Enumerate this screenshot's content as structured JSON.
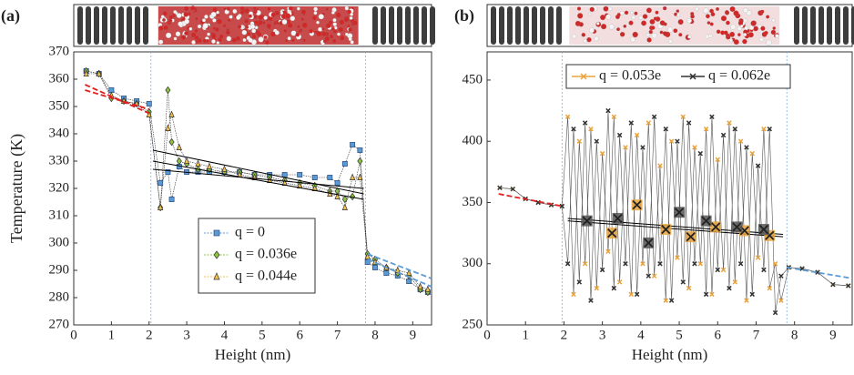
{
  "chart_data": [
    {
      "type": "line",
      "panel_label": "(a)",
      "xlabel": "Height (nm)",
      "ylabel": "Temperature (K)",
      "xlim": [
        0,
        9.5
      ],
      "ylim": [
        270,
        370
      ],
      "xticks": [
        0,
        1,
        2,
        3,
        4,
        5,
        6,
        7,
        8,
        9
      ],
      "yticks": [
        270,
        280,
        290,
        300,
        310,
        320,
        330,
        340,
        350,
        360,
        370
      ],
      "legend": "lower-center",
      "x": [
        0.33,
        0.67,
        1.0,
        1.33,
        1.67,
        2.0,
        2.3,
        2.5,
        2.6,
        2.8,
        3.0,
        3.3,
        3.6,
        4.0,
        4.4,
        4.8,
        5.2,
        5.6,
        6.0,
        6.4,
        6.8,
        7.0,
        7.2,
        7.4,
        7.6,
        7.8,
        8.0,
        8.3,
        8.6,
        8.9,
        9.2,
        9.4
      ],
      "series": [
        {
          "name": "q = 0",
          "color": "#5b9bd5",
          "marker": "square",
          "values": [
            363,
            362,
            356,
            353,
            352,
            351,
            322,
            326,
            316,
            328,
            326,
            326,
            326,
            326,
            326,
            325,
            325,
            325,
            325,
            324,
            324,
            322,
            329,
            336,
            334,
            293,
            291,
            289,
            288,
            286,
            283,
            282
          ]
        },
        {
          "name": "q = 0.036e",
          "color": "#8cc63f",
          "marker": "diamond",
          "values": [
            363,
            362,
            353,
            352,
            351,
            348,
            313,
            356,
            337,
            330,
            329,
            327,
            327,
            326,
            326,
            325,
            324,
            323,
            322,
            321,
            319,
            319,
            316,
            317,
            330,
            296,
            294,
            291,
            289,
            288,
            283,
            282
          ]
        },
        {
          "name": "q = 0.044e",
          "color": "#f2c14e",
          "marker": "triangle",
          "values": [
            362,
            362,
            354,
            352,
            351,
            347,
            313,
            342,
            347,
            335,
            330,
            329,
            328,
            327,
            325,
            324,
            323,
            322,
            321,
            320,
            318,
            317,
            313,
            324,
            324,
            295,
            293,
            291,
            290,
            289,
            284,
            283
          ]
        }
      ],
      "fit_lines": [
        {
          "x": [
            0.3,
            2.0
          ],
          "y": [
            358,
            347.5
          ],
          "color": "#e02020",
          "dash": true
        },
        {
          "x": [
            0.3,
            2.0
          ],
          "y": [
            356,
            349
          ],
          "color": "#e02020",
          "dash": true
        },
        {
          "x": [
            2.1,
            7.7
          ],
          "y": [
            334,
            318
          ],
          "color": "#000000",
          "dash": false
        },
        {
          "x": [
            2.1,
            7.7
          ],
          "y": [
            330,
            316
          ],
          "color": "#000000",
          "dash": false
        },
        {
          "x": [
            2.1,
            7.7
          ],
          "y": [
            327,
            320
          ],
          "color": "#000000",
          "dash": false
        },
        {
          "x": [
            7.8,
            9.5
          ],
          "y": [
            296,
            287
          ],
          "color": "#5b9bd5",
          "dash": true
        },
        {
          "x": [
            7.8,
            9.5
          ],
          "y": [
            294,
            284
          ],
          "color": "#5b9bd5",
          "dash": true
        }
      ],
      "vlines": [
        2.05,
        7.75
      ]
    },
    {
      "type": "line",
      "panel_label": "(b)",
      "xlabel": "Height (nm)",
      "xlim": [
        0,
        9.5
      ],
      "ylim": [
        250,
        473
      ],
      "xticks": [
        0,
        1,
        2,
        3,
        4,
        5,
        6,
        7,
        8,
        9
      ],
      "yticks": [
        250,
        300,
        350,
        400,
        450
      ],
      "legend": "upper-center",
      "x": [
        0.33,
        0.67,
        1.0,
        1.33,
        1.67,
        1.95,
        2.1,
        2.25,
        2.4,
        2.55,
        2.7,
        2.85,
        3.0,
        3.15,
        3.3,
        3.45,
        3.6,
        3.75,
        3.9,
        4.05,
        4.2,
        4.35,
        4.5,
        4.65,
        4.8,
        4.95,
        5.1,
        5.25,
        5.4,
        5.55,
        5.7,
        5.85,
        6.0,
        6.15,
        6.3,
        6.45,
        6.6,
        6.75,
        6.9,
        7.05,
        7.2,
        7.35,
        7.5,
        7.65,
        7.85,
        8.2,
        8.6,
        9.0,
        9.4
      ],
      "series": [
        {
          "name": "q = 0.053e",
          "color": "#e8a33c",
          "marker": "x",
          "values": [
            362,
            361,
            353,
            350,
            348,
            347,
            420,
            275,
            400,
            300,
            410,
            280,
            390,
            310,
            420,
            285,
            395,
            275,
            405,
            300,
            415,
            290,
            380,
            270,
            400,
            305,
            420,
            280,
            395,
            300,
            410,
            275,
            385,
            295,
            415,
            285,
            400,
            270,
            390,
            305,
            410,
            280,
            300,
            270,
            297,
            296,
            293,
            283,
            282
          ]
        },
        {
          "name": "q = 0.062e",
          "color": "#333333",
          "marker": "x",
          "values": [
            362,
            361,
            353,
            350,
            348,
            347,
            300,
            410,
            285,
            415,
            270,
            400,
            295,
            425,
            280,
            405,
            300,
            415,
            275,
            395,
            290,
            420,
            300,
            410,
            270,
            400,
            285,
            415,
            300,
            390,
            275,
            420,
            295,
            405,
            280,
            410,
            300,
            395,
            275,
            380,
            295,
            410,
            260,
            290,
            297,
            296,
            293,
            283,
            282
          ]
        }
      ],
      "block_averages": [
        {
          "color": "#e8a33c",
          "x": [
            3.25,
            3.9,
            4.65,
            5.3,
            5.95,
            6.7,
            7.35
          ],
          "values": [
            325,
            348,
            328,
            322,
            330,
            327,
            323
          ]
        },
        {
          "color": "#555555",
          "x": [
            2.6,
            3.4,
            4.2,
            5.0,
            5.7,
            6.5,
            7.2
          ],
          "values": [
            335,
            337,
            317,
            342,
            335,
            330,
            328
          ]
        }
      ],
      "fit_lines": [
        {
          "x": [
            0.3,
            1.95
          ],
          "y": [
            357,
            347
          ],
          "color": "#e02020",
          "dash": true
        },
        {
          "x": [
            2.1,
            7.7
          ],
          "y": [
            337,
            324
          ],
          "color": "#000000",
          "dash": false
        },
        {
          "x": [
            2.1,
            7.7
          ],
          "y": [
            335,
            322
          ],
          "color": "#000000",
          "dash": false
        },
        {
          "x": [
            7.8,
            9.5
          ],
          "y": [
            297,
            288
          ],
          "color": "#5b9bd5",
          "dash": true
        }
      ],
      "vlines": [
        1.95,
        7.8
      ]
    }
  ]
}
